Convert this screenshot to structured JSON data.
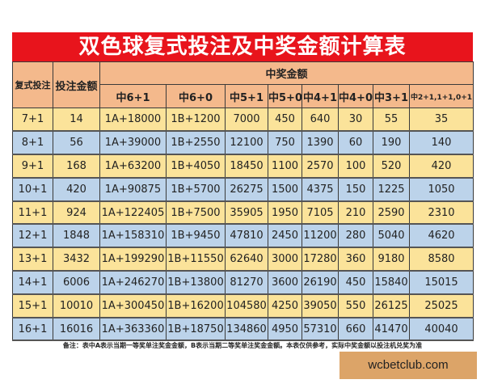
{
  "title": "双色球复式投注及中奖金额计算表",
  "header": {
    "col_bet": "复式投注",
    "col_amount": "投注金额",
    "group": "中奖金额",
    "prizes": [
      "中6+1",
      "中6+0",
      "中5+1",
      "中5+0",
      "中4+1",
      "中4+0",
      "中3+1",
      "中2+1,1+1,0+1"
    ]
  },
  "rows": [
    [
      "7+1",
      "14",
      "1A+18000",
      "1B+1200",
      "7000",
      "450",
      "640",
      "30",
      "55",
      "35"
    ],
    [
      "8+1",
      "56",
      "1A+39000",
      "1B+2550",
      "12100",
      "750",
      "1390",
      "60",
      "190",
      "140"
    ],
    [
      "9+1",
      "168",
      "1A+63200",
      "1B+4050",
      "18450",
      "1100",
      "2570",
      "100",
      "520",
      "420"
    ],
    [
      "10+1",
      "420",
      "1A+90875",
      "1B+5700",
      "26275",
      "1500",
      "4375",
      "150",
      "1225",
      "1050"
    ],
    [
      "11+1",
      "924",
      "1A+122405",
      "1B+7500",
      "35905",
      "1950",
      "7105",
      "210",
      "2590",
      "2310"
    ],
    [
      "12+1",
      "1848",
      "1A+158310",
      "1B+9450",
      "47810",
      "2450",
      "11200",
      "280",
      "5040",
      "4620"
    ],
    [
      "13+1",
      "3432",
      "1A+199290",
      "1B+11550",
      "62640",
      "3000",
      "17280",
      "360",
      "9180",
      "8580"
    ],
    [
      "14+1",
      "6006",
      "1A+246270",
      "1B+13800",
      "81270",
      "3600",
      "26190",
      "450",
      "15840",
      "15015"
    ],
    [
      "15+1",
      "10010",
      "1A+300450",
      "1B+16200",
      "104580",
      "4250",
      "39050",
      "550",
      "26125",
      "25025"
    ],
    [
      "16+1",
      "16016",
      "1A+363360",
      "1B+18750",
      "134860",
      "4950",
      "57310",
      "660",
      "41470",
      "40040"
    ]
  ],
  "note": "备注：表中A表示当期一等奖单注奖金金额，B表示当期二等奖单注奖金金额。本表仅供参考，实际中奖金额以投注机兑奖为准",
  "watermark": "wcbetclub.com",
  "colors": {
    "title_bg": "#e8141c",
    "header_bg": "#f4b98c",
    "row_yellow": "#fbe39a",
    "row_blue": "#bcd3ea",
    "watermark_bg": "#dca468"
  }
}
